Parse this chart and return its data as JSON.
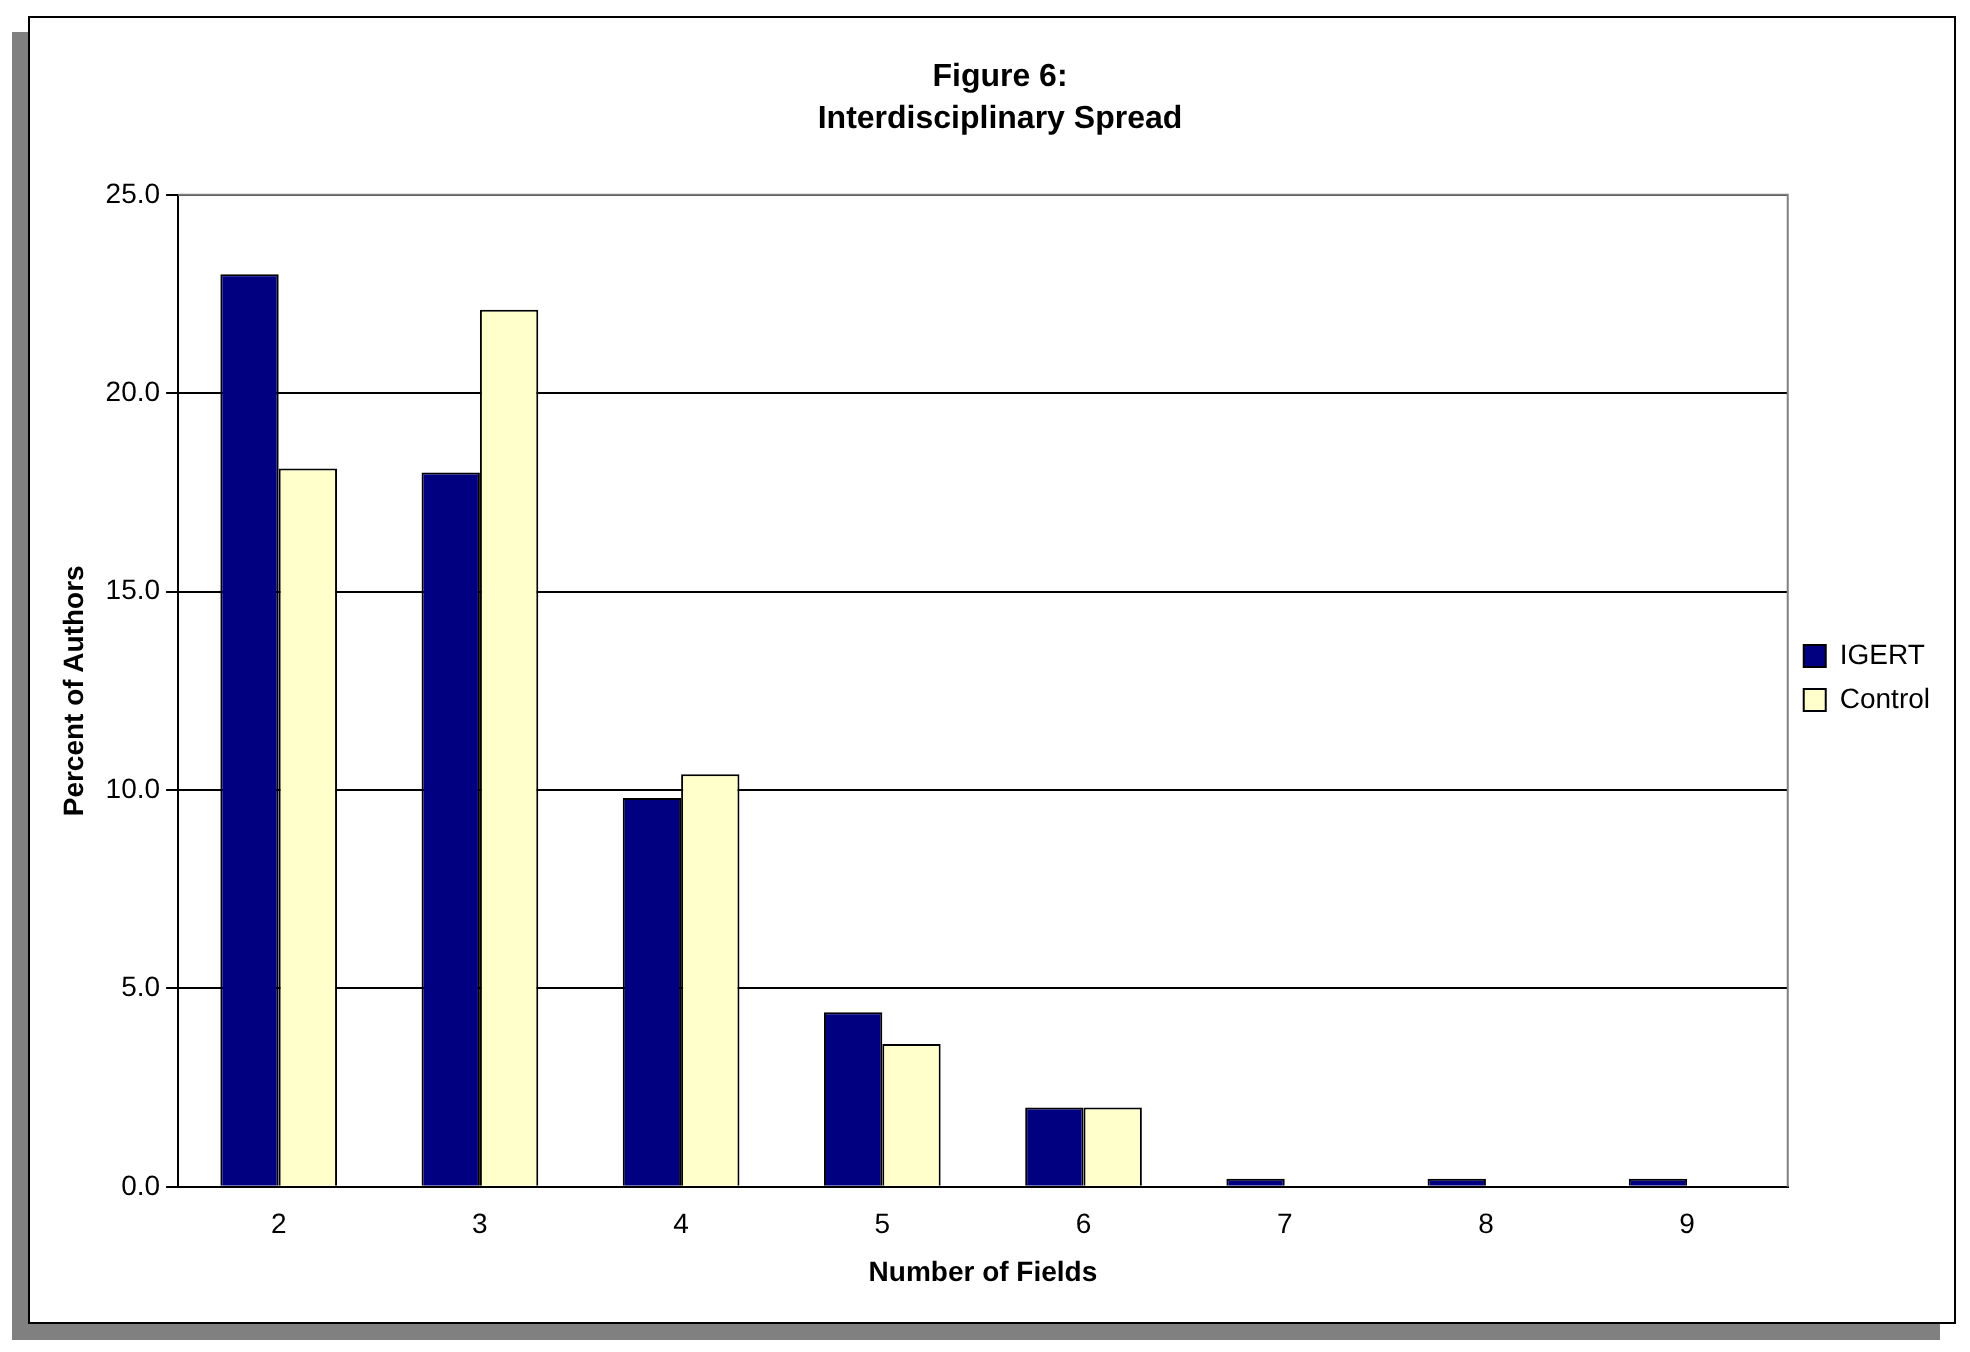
{
  "chart_data": {
    "type": "bar",
    "title": "Figure 6:",
    "subtitle": "Interdisciplinary Spread",
    "xlabel": "Number of Fields",
    "ylabel": "Percent of Authors",
    "categories": [
      "2",
      "3",
      "4",
      "5",
      "6",
      "7",
      "8",
      "9"
    ],
    "series": [
      {
        "name": "IGERT",
        "color": "#000080",
        "values": [
          23.0,
          18.0,
          9.8,
          4.4,
          2.0,
          0.2,
          0.2,
          0.2
        ]
      },
      {
        "name": "Control",
        "color": "#ffffcc",
        "values": [
          18.1,
          22.1,
          10.4,
          3.6,
          2.0,
          0,
          0,
          0
        ]
      }
    ],
    "ylim": [
      0,
      25
    ],
    "yticks": [
      {
        "value": 0,
        "label": "0.0"
      },
      {
        "value": 5,
        "label": "5.0"
      },
      {
        "value": 10,
        "label": "10.0"
      },
      {
        "value": 15,
        "label": "15.0"
      },
      {
        "value": 20,
        "label": "20.0"
      },
      {
        "value": 25,
        "label": "25.0"
      }
    ],
    "grid": "y",
    "legend": "right"
  }
}
